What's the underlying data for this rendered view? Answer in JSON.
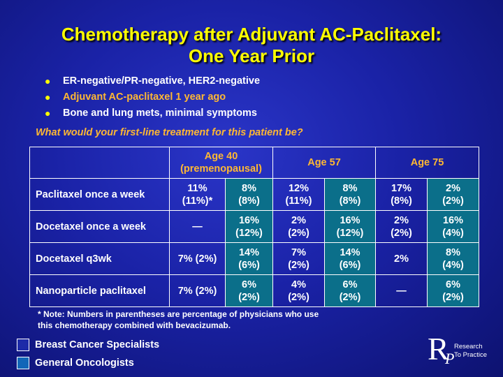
{
  "title_line1": "Chemotherapy after Adjuvant AC-Paclitaxel:",
  "title_line2": "One Year Prior",
  "bullets": [
    {
      "text": "ER-negative/PR-negative, HER2-negative",
      "highlight": false
    },
    {
      "text": "Adjuvant AC-paclitaxel 1 year ago",
      "highlight": true
    },
    {
      "text": "Bone and lung mets, minimal symptoms",
      "highlight": false
    }
  ],
  "bullet_symbol": "●",
  "question": "What would your first-line treatment for this patient be?",
  "table": {
    "headers": {
      "age40_line1": "Age 40",
      "age40_line2": "(premenopausal)",
      "age57": "Age 57",
      "age75": "Age 75"
    },
    "rows": [
      {
        "label": "Paclitaxel once a week",
        "cells": [
          [
            "11%",
            "(11%)*"
          ],
          [
            "8%",
            "(8%)"
          ],
          [
            "12%",
            "(11%)"
          ],
          [
            "8%",
            "(8%)"
          ],
          [
            "17%",
            "(8%)"
          ],
          [
            "2%",
            "(2%)"
          ]
        ]
      },
      {
        "label": "Docetaxel once a week",
        "cells": [
          [
            "—",
            ""
          ],
          [
            "16%",
            "(12%)"
          ],
          [
            "2%",
            "(2%)"
          ],
          [
            "16%",
            "(12%)"
          ],
          [
            "2%",
            "(2%)"
          ],
          [
            "16%",
            "(4%)"
          ]
        ]
      },
      {
        "label": "Docetaxel q3wk",
        "cells": [
          [
            "7% (2%)",
            ""
          ],
          [
            "14%",
            "(6%)"
          ],
          [
            "7%",
            "(2%)"
          ],
          [
            "14%",
            "(6%)"
          ],
          [
            "2%",
            ""
          ],
          [
            "8%",
            "(4%)"
          ]
        ]
      },
      {
        "label": "Nanoparticle paclitaxel",
        "cells": [
          [
            "7% (2%)",
            ""
          ],
          [
            "6%",
            "(2%)"
          ],
          [
            "4%",
            "(2%)"
          ],
          [
            "6%",
            "(2%)"
          ],
          [
            "—",
            ""
          ],
          [
            "6%",
            "(2%)"
          ]
        ]
      }
    ]
  },
  "note_line1": "* Note: Numbers in parentheses are percentage of physicians who use",
  "note_line2": "this chemotherapy combined with bevacizumab.",
  "legend": {
    "specialists": "Breast Cancer Specialists",
    "oncologists": "General Oncologists"
  },
  "logo": {
    "letter_r": "R",
    "letter_p": "P",
    "line1": "Research",
    "line2": "To Practice"
  },
  "colors": {
    "title": "#ffff00",
    "accent_orange": "#ffb833",
    "specialist_cell": "#1d2aa8",
    "oncologist_cell": "#0b6f8a"
  }
}
